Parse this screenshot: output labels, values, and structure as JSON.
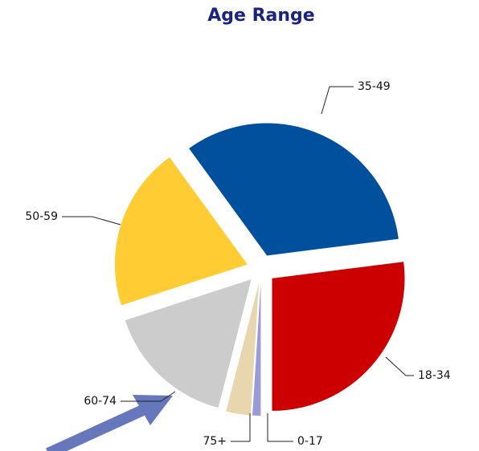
{
  "chart_data": {
    "type": "pie",
    "title": "Age Range",
    "categories": [
      "35-49",
      "18-34",
      "0-17",
      "75+",
      "60-74",
      "50-59"
    ],
    "values": [
      33,
      27,
      1,
      3,
      16,
      20
    ],
    "colors": [
      "#00509e",
      "#cc0000",
      "#9a9ad8",
      "#e8d6ae",
      "#cccccc",
      "#ffcc33"
    ]
  }
}
